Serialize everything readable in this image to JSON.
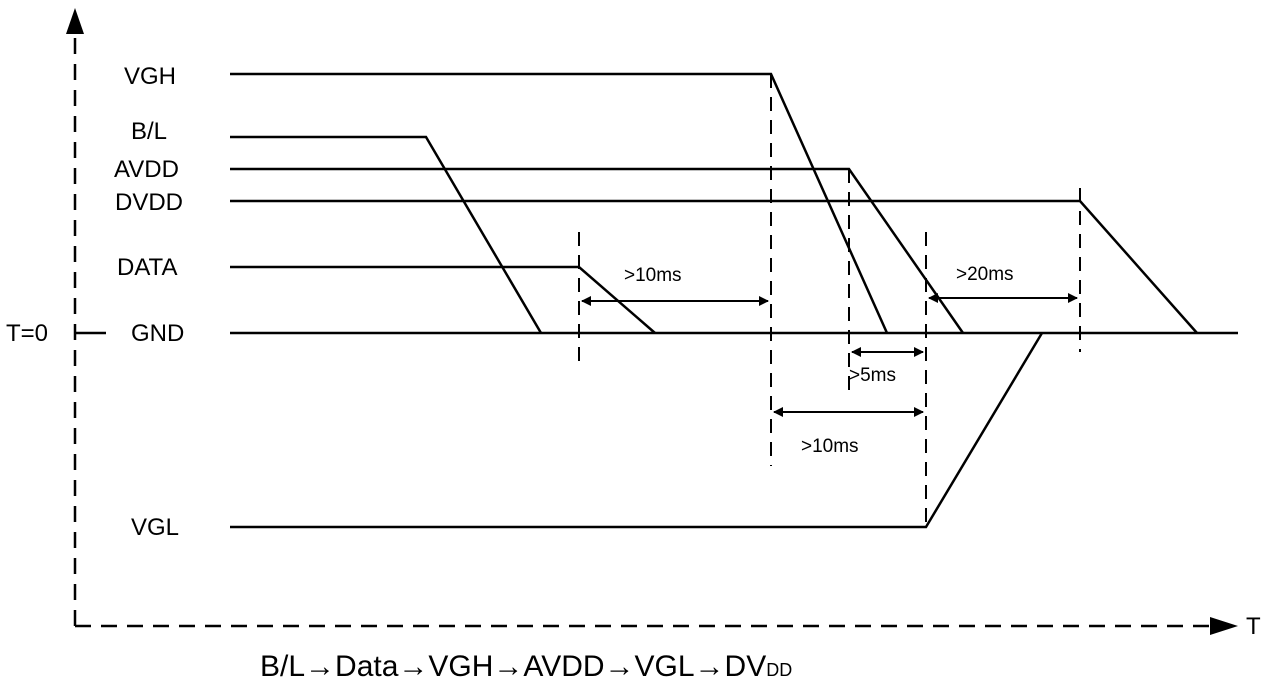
{
  "signals": [
    {
      "id": "vgh",
      "label": "VGH"
    },
    {
      "id": "bl",
      "label": "B/L"
    },
    {
      "id": "avdd",
      "label": "AVDD"
    },
    {
      "id": "dvdd",
      "label": "DVDD"
    },
    {
      "id": "data",
      "label": "DATA"
    },
    {
      "id": "gnd",
      "label": "GND"
    },
    {
      "id": "vgl",
      "label": "VGL"
    }
  ],
  "axis": {
    "t0_label": "T=0",
    "time_label": "T"
  },
  "intervals": [
    {
      "id": "data-to-vgh",
      "label": ">10ms"
    },
    {
      "id": "avdd-to-vgl",
      "label": ">5ms"
    },
    {
      "id": "vgh-to-vgl",
      "label": ">10ms"
    },
    {
      "id": "vgl-to-dvdd",
      "label": ">20ms"
    }
  ],
  "caption": {
    "sequence": "B/L→Data→VGH→AVDD→VGL→DV",
    "subscript": "DD"
  }
}
